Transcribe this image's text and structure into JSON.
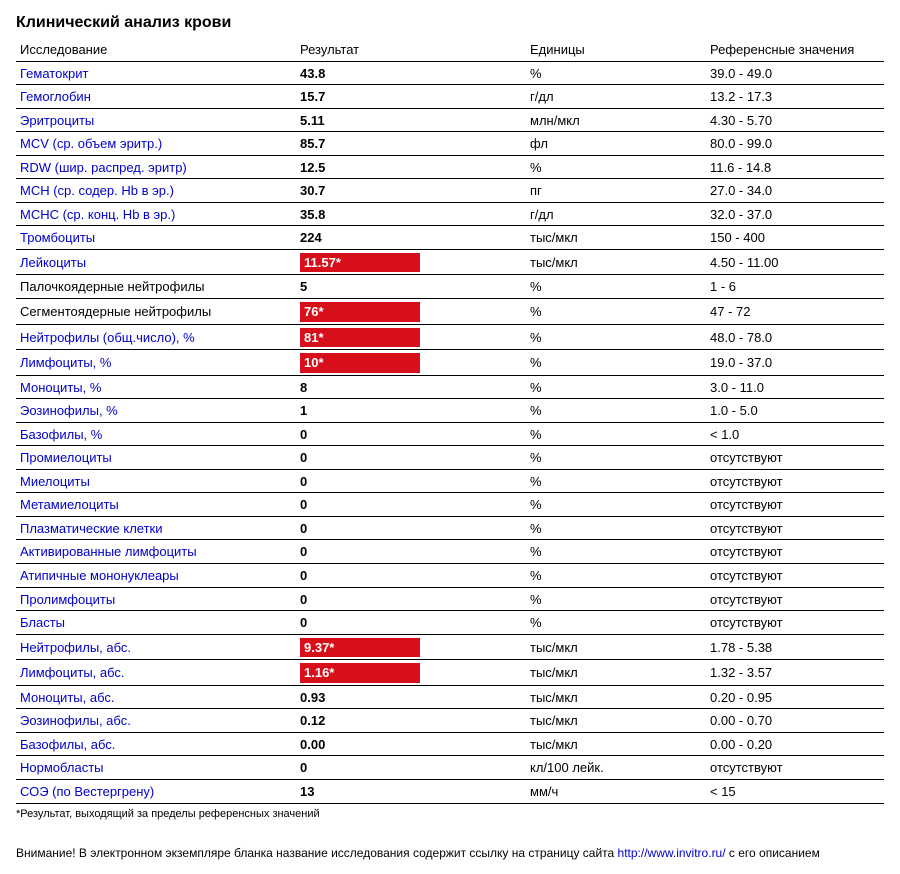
{
  "title": "Клинический анализ крови",
  "columns": [
    "Исследование",
    "Результат",
    "Единицы",
    "Референсные значения"
  ],
  "colors": {
    "link": "#0000cc",
    "flag_bg": "#d60f1a",
    "flag_fg": "#ffffff",
    "border": "#000000"
  },
  "rows": [
    {
      "name": "Гематокрит",
      "link": true,
      "result": "43.8",
      "flag": false,
      "unit": "%",
      "ref": "39.0 - 49.0"
    },
    {
      "name": "Гемоглобин",
      "link": true,
      "result": "15.7",
      "flag": false,
      "unit": "г/дл",
      "ref": "13.2 - 17.3"
    },
    {
      "name": "Эритроциты",
      "link": true,
      "result": "5.11",
      "flag": false,
      "unit": "млн/мкл",
      "ref": "4.30 - 5.70"
    },
    {
      "name": "MCV (ср. объем эритр.)",
      "link": true,
      "result": "85.7",
      "flag": false,
      "unit": "фл",
      "ref": "80.0 - 99.0"
    },
    {
      "name": "RDW (шир. распред. эритр)",
      "link": true,
      "result": "12.5",
      "flag": false,
      "unit": "%",
      "ref": "11.6 - 14.8"
    },
    {
      "name": "MCH (ср. содер. Hb в эр.)",
      "link": true,
      "result": "30.7",
      "flag": false,
      "unit": "пг",
      "ref": "27.0 - 34.0"
    },
    {
      "name": "MCHC (ср. конц. Hb в эр.)",
      "link": true,
      "result": "35.8",
      "flag": false,
      "unit": "г/дл",
      "ref": "32.0 - 37.0"
    },
    {
      "name": "Тромбоциты",
      "link": true,
      "result": "224",
      "flag": false,
      "unit": "тыс/мкл",
      "ref": "150 - 400"
    },
    {
      "name": "Лейкоциты",
      "link": true,
      "result": "11.57*",
      "flag": true,
      "unit": "тыс/мкл",
      "ref": "4.50 - 11.00"
    },
    {
      "name": "Палочкоядерные нейтрофилы",
      "link": false,
      "result": "5",
      "flag": false,
      "unit": "%",
      "ref": "1 - 6"
    },
    {
      "name": "Сегментоядерные нейтрофилы",
      "link": false,
      "result": "76*",
      "flag": true,
      "unit": "%",
      "ref": "47 - 72"
    },
    {
      "name": "Нейтрофилы (общ.число), %",
      "link": true,
      "result": "81*",
      "flag": true,
      "unit": "%",
      "ref": "48.0 - 78.0"
    },
    {
      "name": "Лимфоциты, %",
      "link": true,
      "result": "10*",
      "flag": true,
      "unit": "%",
      "ref": "19.0 - 37.0"
    },
    {
      "name": "Моноциты, %",
      "link": true,
      "result": "8",
      "flag": false,
      "unit": "%",
      "ref": "3.0 - 11.0"
    },
    {
      "name": "Эозинофилы, %",
      "link": true,
      "result": "1",
      "flag": false,
      "unit": "%",
      "ref": "1.0 - 5.0"
    },
    {
      "name": "Базофилы, %",
      "link": true,
      "result": "0",
      "flag": false,
      "unit": "%",
      "ref": "< 1.0"
    },
    {
      "name": "Промиелоциты",
      "link": true,
      "result": "0",
      "flag": false,
      "unit": "%",
      "ref": "отсутствуют"
    },
    {
      "name": "Миелоциты",
      "link": true,
      "result": "0",
      "flag": false,
      "unit": "%",
      "ref": "отсутствуют"
    },
    {
      "name": "Метамиелоциты",
      "link": true,
      "result": "0",
      "flag": false,
      "unit": "%",
      "ref": "отсутствуют"
    },
    {
      "name": "Плазматические клетки",
      "link": true,
      "result": "0",
      "flag": false,
      "unit": "%",
      "ref": "отсутствуют"
    },
    {
      "name": "Активированные лимфоциты",
      "link": true,
      "result": "0",
      "flag": false,
      "unit": "%",
      "ref": "отсутствуют"
    },
    {
      "name": "Атипичные мононуклеары",
      "link": true,
      "result": "0",
      "flag": false,
      "unit": "%",
      "ref": "отсутствуют"
    },
    {
      "name": "Пролимфоциты",
      "link": true,
      "result": "0",
      "flag": false,
      "unit": "%",
      "ref": "отсутствуют"
    },
    {
      "name": "Бласты",
      "link": true,
      "result": "0",
      "flag": false,
      "unit": "%",
      "ref": "отсутствуют"
    },
    {
      "name": "Нейтрофилы, абс.",
      "link": true,
      "result": "9.37*",
      "flag": true,
      "unit": "тыс/мкл",
      "ref": "1.78 - 5.38"
    },
    {
      "name": "Лимфоциты, абс.",
      "link": true,
      "result": "1.16*",
      "flag": true,
      "unit": "тыс/мкл",
      "ref": "1.32 - 3.57"
    },
    {
      "name": "Моноциты, абс.",
      "link": true,
      "result": "0.93",
      "flag": false,
      "unit": "тыс/мкл",
      "ref": "0.20 - 0.95"
    },
    {
      "name": "Эозинофилы, абс.",
      "link": true,
      "result": "0.12",
      "flag": false,
      "unit": "тыс/мкл",
      "ref": "0.00 - 0.70"
    },
    {
      "name": "Базофилы, абс.",
      "link": true,
      "result": "0.00",
      "flag": false,
      "unit": "тыс/мкл",
      "ref": "0.00 - 0.20"
    },
    {
      "name": "Нормобласты",
      "link": true,
      "result": "0",
      "flag": false,
      "unit": "кл/100 лейк.",
      "ref": "отсутствуют"
    },
    {
      "name": "СОЭ (по Вестергрену)",
      "link": true,
      "result": "13",
      "flag": false,
      "unit": "мм/ч",
      "ref": "< 15"
    }
  ],
  "footnote": "*Результат, выходящий за пределы референсных значений",
  "warning_prefix": "Внимание! В электронном экземпляре бланка название исследования содержит ссылку на страницу сайта ",
  "warning_link": "http://www.invitro.ru/",
  "warning_suffix": " с его описанием"
}
